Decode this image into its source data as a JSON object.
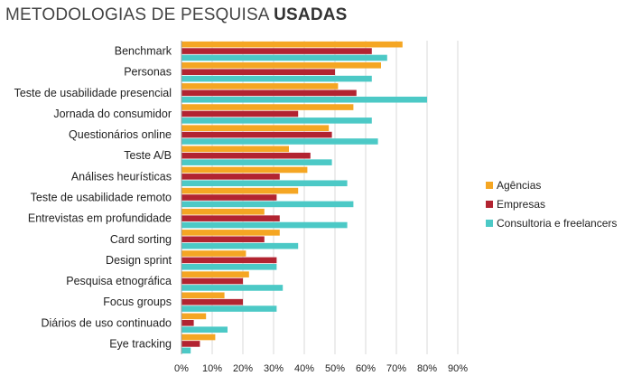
{
  "title": {
    "prefix": "METODOLOGIAS DE PESQUISA",
    "bold": "USADAS"
  },
  "chart_data": {
    "type": "bar",
    "orientation": "horizontal",
    "categories": [
      "Benchmark",
      "Personas",
      "Teste de usabilidade presencial",
      "Jornada do consumidor",
      "Questionários online",
      "Teste A/B",
      "Análises heurísticas",
      "Teste de usabilidade remoto",
      "Entrevistas em profundidade",
      "Card sorting",
      "Design sprint",
      "Pesquisa etnográfica",
      "Focus groups",
      "Diários de uso continuado",
      "Eye tracking"
    ],
    "series": [
      {
        "name": "Agências",
        "color": "#f5a623",
        "values": [
          72,
          65,
          51,
          56,
          48,
          35,
          41,
          38,
          27,
          32,
          21,
          22,
          14,
          8,
          11
        ]
      },
      {
        "name": "Empresas",
        "color": "#b22431",
        "values": [
          62,
          50,
          57,
          38,
          49,
          42,
          32,
          31,
          32,
          27,
          31,
          20,
          20,
          4,
          6
        ]
      },
      {
        "name": "Consultoria e freelancers",
        "color": "#4cc9c6",
        "values": [
          67,
          62,
          80,
          62,
          64,
          49,
          54,
          56,
          54,
          38,
          31,
          33,
          31,
          15,
          3
        ]
      }
    ],
    "xlim": [
      0,
      90
    ],
    "xticks": [
      "0%",
      "10%",
      "20%",
      "30%",
      "40%",
      "50%",
      "60%",
      "70%",
      "80%",
      "90%"
    ],
    "grid": true,
    "legend_position": "right"
  }
}
